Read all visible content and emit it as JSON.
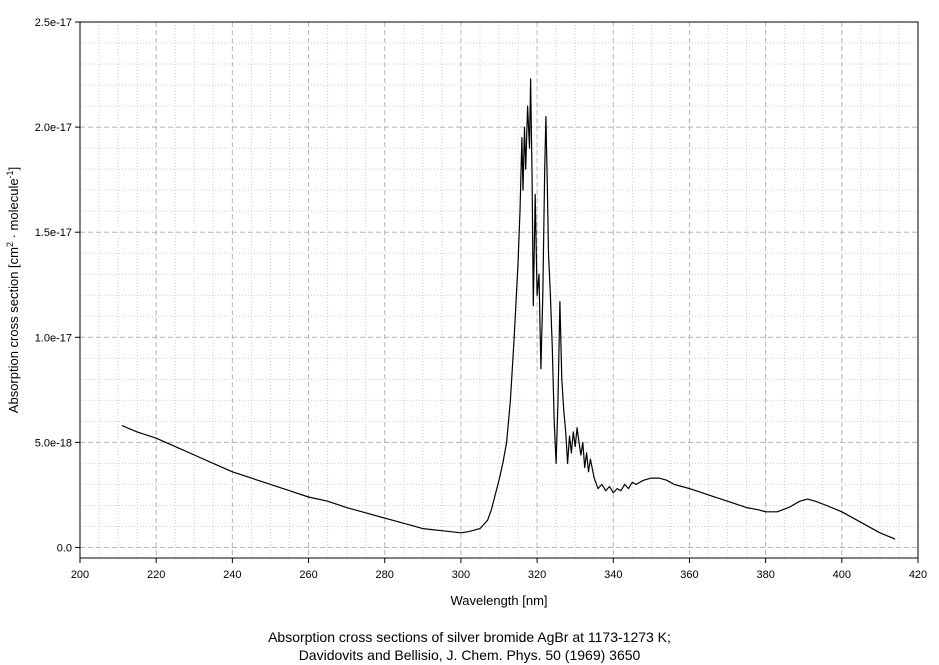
{
  "chart_data": {
    "type": "line",
    "xlabel": "Wavelength [nm]",
    "ylabel": {
      "base": "Absorption cross section [cm",
      "sup1": "2",
      "mid": " · molecule",
      "sup2": "-1",
      "end": "]"
    },
    "xlim": [
      200,
      420
    ],
    "ylim": [
      -5e-19,
      2.5e-17
    ],
    "x_ticks": [
      200,
      220,
      240,
      260,
      280,
      300,
      320,
      340,
      360,
      380,
      400,
      420
    ],
    "x_tick_labels": [
      "200",
      "220",
      "240",
      "260",
      "280",
      "300",
      "320",
      "340",
      "360",
      "380",
      "400",
      "420"
    ],
    "y_ticks": [
      0,
      5e-18,
      1e-17,
      1.5e-17,
      2e-17,
      2.5e-17
    ],
    "y_tick_labels": [
      "0.0",
      "5.0e-18",
      "1.0e-17",
      "1.5e-17",
      "2.0e-17",
      "2.5e-17"
    ],
    "grid": true,
    "series": [
      {
        "color": "#000000",
        "points": [
          [
            211,
            5.8e-18
          ],
          [
            215,
            5.5e-18
          ],
          [
            220,
            5.2e-18
          ],
          [
            225,
            4.8e-18
          ],
          [
            230,
            4.4e-18
          ],
          [
            235,
            4e-18
          ],
          [
            240,
            3.6e-18
          ],
          [
            245,
            3.3e-18
          ],
          [
            250,
            3e-18
          ],
          [
            255,
            2.7e-18
          ],
          [
            260,
            2.4e-18
          ],
          [
            265,
            2.2e-18
          ],
          [
            270,
            1.9e-18
          ],
          [
            275,
            1.65e-18
          ],
          [
            280,
            1.4e-18
          ],
          [
            285,
            1.15e-18
          ],
          [
            290,
            9e-19
          ],
          [
            295,
            8e-19
          ],
          [
            300,
            7e-19
          ],
          [
            302,
            7.5e-19
          ],
          [
            305,
            9e-19
          ],
          [
            307,
            1.3e-18
          ],
          [
            308,
            1.8e-18
          ],
          [
            309,
            2.5e-18
          ],
          [
            310,
            3.2e-18
          ],
          [
            311,
            4e-18
          ],
          [
            312,
            5e-18
          ],
          [
            313,
            7e-18
          ],
          [
            314,
            1e-17
          ],
          [
            315,
            1.35e-17
          ],
          [
            315.5,
            1.6e-17
          ],
          [
            316,
            1.95e-17
          ],
          [
            316.3,
            1.7e-17
          ],
          [
            316.7,
            2e-17
          ],
          [
            317,
            1.8e-17
          ],
          [
            317.5,
            2.1e-17
          ],
          [
            318,
            1.9e-17
          ],
          [
            318.3,
            2.23e-17
          ],
          [
            318.7,
            1.75e-17
          ],
          [
            319,
            1.15e-17
          ],
          [
            319.5,
            1.68e-17
          ],
          [
            320,
            1.2e-17
          ],
          [
            320.5,
            1.3e-17
          ],
          [
            321,
            8.5e-18
          ],
          [
            321.5,
            1.2e-17
          ],
          [
            322,
            1.8e-17
          ],
          [
            322.3,
            2.05e-17
          ],
          [
            322.7,
            1.7e-17
          ],
          [
            323,
            1.4e-17
          ],
          [
            323.5,
            1.2e-17
          ],
          [
            324,
            9.5e-18
          ],
          [
            324.5,
            6e-18
          ],
          [
            325,
            4e-18
          ],
          [
            325.5,
            7e-18
          ],
          [
            326,
            1.17e-17
          ],
          [
            326.5,
            8e-18
          ],
          [
            327,
            6.5e-18
          ],
          [
            327.5,
            5.5e-18
          ],
          [
            328,
            4e-18
          ],
          [
            328.5,
            5.3e-18
          ],
          [
            329,
            4.5e-18
          ],
          [
            329.5,
            5.5e-18
          ],
          [
            330,
            4.8e-18
          ],
          [
            330.5,
            5.7e-18
          ],
          [
            331,
            5e-18
          ],
          [
            331.5,
            4.4e-18
          ],
          [
            332,
            5e-18
          ],
          [
            332.5,
            3.8e-18
          ],
          [
            333,
            4.5e-18
          ],
          [
            333.5,
            3.6e-18
          ],
          [
            334,
            4.2e-18
          ],
          [
            335,
            3.3e-18
          ],
          [
            336,
            2.8e-18
          ],
          [
            337,
            3e-18
          ],
          [
            338,
            2.7e-18
          ],
          [
            339,
            2.9e-18
          ],
          [
            340,
            2.6e-18
          ],
          [
            341,
            2.8e-18
          ],
          [
            342,
            2.7e-18
          ],
          [
            343,
            3e-18
          ],
          [
            344,
            2.8e-18
          ],
          [
            345,
            3.1e-18
          ],
          [
            346,
            3e-18
          ],
          [
            348,
            3.2e-18
          ],
          [
            350,
            3.3e-18
          ],
          [
            352,
            3.3e-18
          ],
          [
            354,
            3.2e-18
          ],
          [
            356,
            3e-18
          ],
          [
            358,
            2.9e-18
          ],
          [
            360,
            2.8e-18
          ],
          [
            365,
            2.5e-18
          ],
          [
            370,
            2.2e-18
          ],
          [
            375,
            1.9e-18
          ],
          [
            378,
            1.8e-18
          ],
          [
            380,
            1.7e-18
          ],
          [
            383,
            1.7e-18
          ],
          [
            386,
            1.9e-18
          ],
          [
            389,
            2.2e-18
          ],
          [
            391,
            2.3e-18
          ],
          [
            393,
            2.2e-18
          ],
          [
            396,
            2e-18
          ],
          [
            400,
            1.7e-18
          ],
          [
            405,
            1.2e-18
          ],
          [
            410,
            7e-19
          ],
          [
            414,
            4e-19
          ]
        ]
      }
    ]
  },
  "caption": {
    "line1": "Absorption cross sections of silver bromide AgBr at 1173-1273 K;",
    "line2": "Davidovits and Bellisio, J. Chem. Phys. 50 (1969) 3650"
  }
}
